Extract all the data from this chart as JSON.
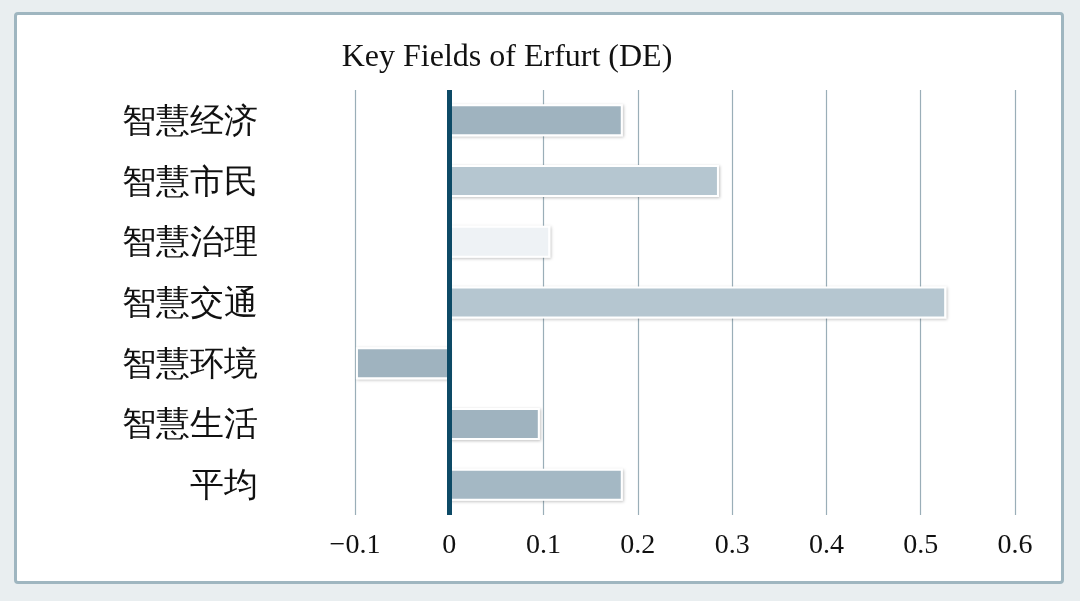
{
  "chart_data": {
    "type": "bar",
    "orientation": "horizontal",
    "title": "Key Fields of Erfurt (DE)",
    "categories": [
      "智慧经济",
      "智慧市民",
      "智慧治理",
      "智慧交通",
      "智慧环境",
      "智慧生活",
      "平均"
    ],
    "values": [
      0.184,
      0.286,
      0.107,
      0.527,
      -0.099,
      0.096,
      0.184
    ],
    "colors": [
      "#9fb3bf",
      "#b5c6d0",
      "#eef2f5",
      "#b5c6d0",
      "#9fb3bf",
      "#9fb3bf",
      "#a4b8c4"
    ],
    "xlim": [
      -0.1,
      0.6
    ],
    "ref_lines": [
      {
        "axis": "x",
        "value": 0,
        "color": "#0d4a66"
      }
    ],
    "xticks": [
      {
        "value": -0.1,
        "label": "−0.1"
      },
      0,
      0.1,
      0.2,
      0.3,
      0.4,
      0.5,
      0.6
    ],
    "grid": "x"
  }
}
